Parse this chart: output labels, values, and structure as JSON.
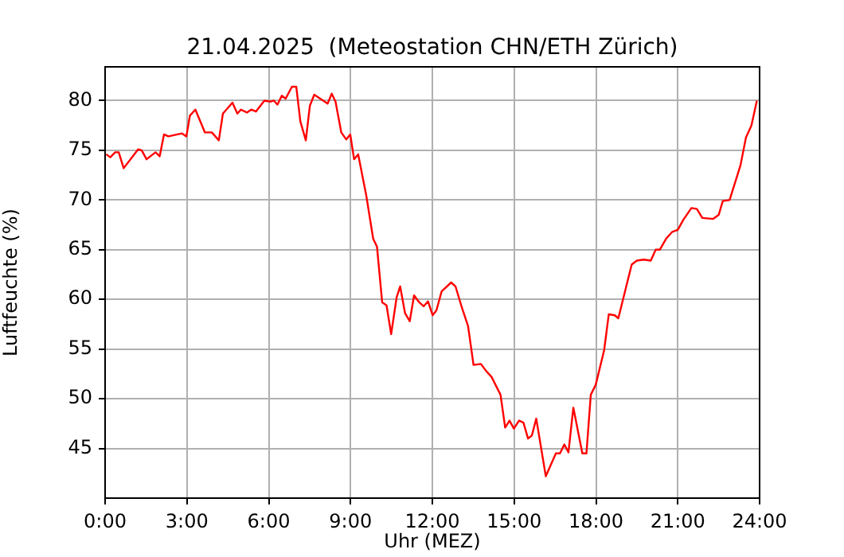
{
  "chart_data": {
    "type": "line",
    "title": "21.04.2025  (Meteostation CHN/ETH Zürich)",
    "xlabel": "Uhr (MEZ)",
    "ylabel": "Luftfeuchte (%)",
    "xlim": [
      0,
      24
    ],
    "xticks": [
      {
        "value": 0,
        "label": "0:00"
      },
      {
        "value": 3,
        "label": "3:00"
      },
      {
        "value": 6,
        "label": "6:00"
      },
      {
        "value": 9,
        "label": "9:00"
      },
      {
        "value": 12,
        "label": "12:00"
      },
      {
        "value": 15,
        "label": "15:00"
      },
      {
        "value": 18,
        "label": "18:00"
      },
      {
        "value": 21,
        "label": "21:00"
      },
      {
        "value": 24,
        "label": "24:00"
      }
    ],
    "ylim": [
      40,
      83.4
    ],
    "yticks": [
      45,
      50,
      55,
      60,
      65,
      70,
      75,
      80
    ],
    "grid": true,
    "series": [
      {
        "color": "#ff0000",
        "x": [
          0.04,
          0.19,
          0.37,
          0.5,
          0.68,
          1.21,
          1.34,
          1.52,
          1.85,
          2.0,
          2.16,
          2.32,
          2.82,
          2.98,
          3.11,
          3.31,
          3.66,
          3.91,
          4.01,
          4.17,
          4.32,
          4.67,
          4.85,
          4.98,
          5.2,
          5.36,
          5.53,
          5.84,
          6.07,
          6.19,
          6.32,
          6.48,
          6.62,
          6.85,
          7.01,
          7.16,
          7.36,
          7.51,
          7.67,
          8.16,
          8.31,
          8.45,
          8.66,
          8.84,
          8.99,
          9.13,
          9.28,
          9.58,
          9.83,
          9.97,
          10.16,
          10.32,
          10.49,
          10.69,
          10.82,
          11.0,
          11.17,
          11.33,
          11.52,
          11.68,
          11.84,
          12.01,
          12.15,
          12.34,
          12.69,
          12.85,
          13.08,
          13.31,
          13.51,
          13.78,
          13.97,
          14.17,
          14.5,
          14.67,
          14.83,
          14.99,
          15.18,
          15.34,
          15.51,
          15.65,
          15.81,
          16.16,
          16.53,
          16.68,
          16.84,
          16.99,
          17.17,
          17.5,
          17.65,
          17.81,
          17.99,
          18.3,
          18.47,
          18.69,
          18.82,
          19.11,
          19.31,
          19.5,
          19.75,
          20.01,
          20.19,
          20.34,
          20.57,
          20.8,
          21.0,
          21.2,
          21.5,
          21.7,
          21.9,
          22.3,
          22.5,
          22.65,
          22.9,
          23.3,
          23.5,
          23.7,
          23.9
        ],
        "values": [
          74.6,
          74.3,
          74.8,
          74.8,
          73.2,
          75.1,
          75.0,
          74.1,
          74.8,
          74.4,
          76.6,
          76.4,
          76.7,
          76.4,
          78.5,
          79.1,
          76.8,
          76.8,
          76.5,
          76.0,
          78.7,
          79.8,
          78.7,
          79.1,
          78.8,
          79.1,
          78.9,
          80.0,
          79.9,
          80.0,
          79.6,
          80.5,
          80.2,
          81.4,
          81.4,
          77.9,
          76.0,
          79.5,
          80.6,
          79.7,
          80.7,
          79.9,
          76.8,
          76.1,
          76.6,
          74.1,
          74.6,
          70.4,
          66.1,
          65.3,
          59.7,
          59.4,
          56.5,
          60.2,
          61.3,
          58.6,
          57.8,
          60.4,
          59.7,
          59.3,
          59.8,
          58.4,
          58.9,
          60.8,
          61.7,
          61.3,
          59.2,
          57.3,
          53.4,
          53.5,
          52.8,
          52.2,
          50.4,
          47.1,
          47.8,
          47.0,
          47.8,
          47.6,
          46.0,
          46.3,
          48.0,
          42.2,
          44.5,
          44.5,
          45.4,
          44.6,
          49.1,
          44.5,
          44.5,
          50.4,
          51.4,
          54.9,
          58.5,
          58.4,
          58.1,
          61.3,
          63.5,
          63.9,
          64.0,
          63.9,
          65.0,
          65.0,
          66.1,
          66.8,
          67.0,
          68.0,
          69.2,
          69.1,
          68.2,
          68.1,
          68.5,
          69.9,
          70.0,
          73.5,
          76.3,
          77.5,
          80.0
        ]
      }
    ]
  }
}
